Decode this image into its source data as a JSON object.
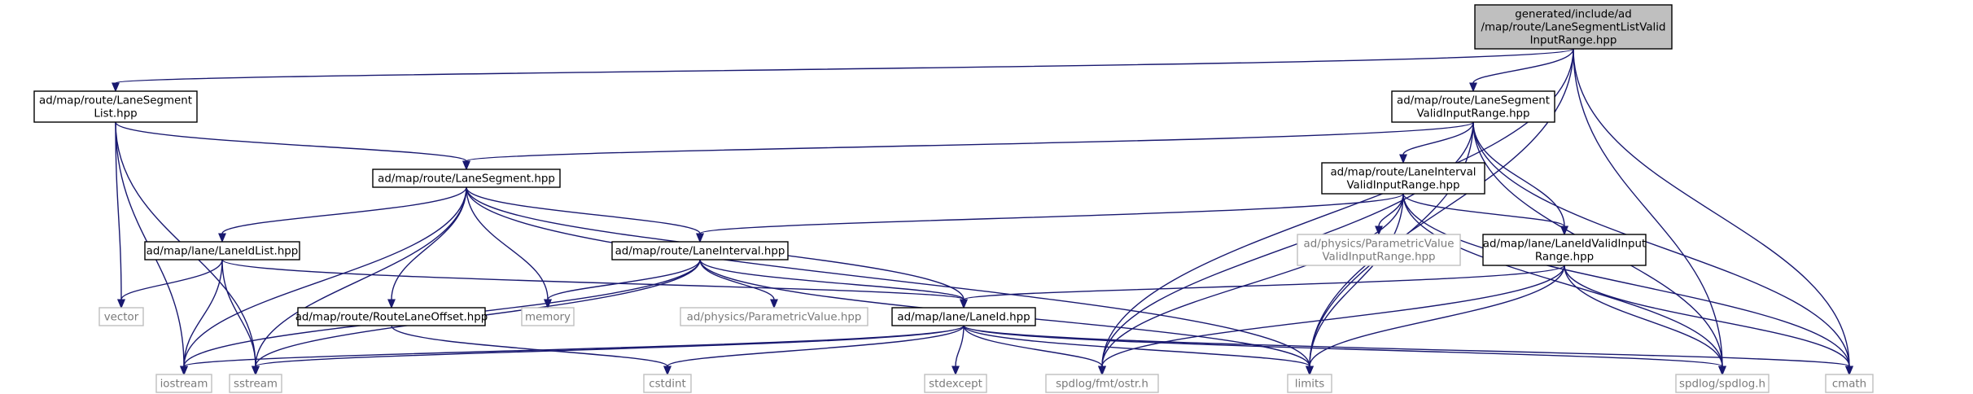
{
  "nodes": {
    "root": [
      "generated/include/ad",
      "/map/route/LaneSegmentListValid",
      "InputRange.hpp"
    ],
    "lsl": [
      "ad/map/route/LaneSegment",
      "List.hpp"
    ],
    "lsvir": [
      "ad/map/route/LaneSegment",
      "ValidInputRange.hpp"
    ],
    "ls": [
      "ad/map/route/LaneSegment.hpp"
    ],
    "livir": [
      "ad/map/route/LaneInterval",
      "ValidInputRange.hpp"
    ],
    "lidl": [
      "ad/map/lane/LaneIdList.hpp"
    ],
    "li": [
      "ad/map/route/LaneInterval.hpp"
    ],
    "pvvir": [
      "ad/physics/ParametricValue",
      "ValidInputRange.hpp"
    ],
    "lidvir": [
      "ad/map/lane/LaneIdValidInput",
      "Range.hpp"
    ],
    "vector": [
      "vector"
    ],
    "rlo": [
      "ad/map/route/RouteLaneOffset.hpp"
    ],
    "memory": [
      "memory"
    ],
    "pv": [
      "ad/physics/ParametricValue.hpp"
    ],
    "lid": [
      "ad/map/lane/LaneId.hpp"
    ],
    "iostream": [
      "iostream"
    ],
    "sstream": [
      "sstream"
    ],
    "cstdint": [
      "cstdint"
    ],
    "stdexcept": [
      "stdexcept"
    ],
    "ostr": [
      "spdlog/fmt/ostr.h"
    ],
    "limits": [
      "limits"
    ],
    "spdlog": [
      "spdlog/spdlog.h"
    ],
    "cmath": [
      "cmath"
    ]
  }
}
